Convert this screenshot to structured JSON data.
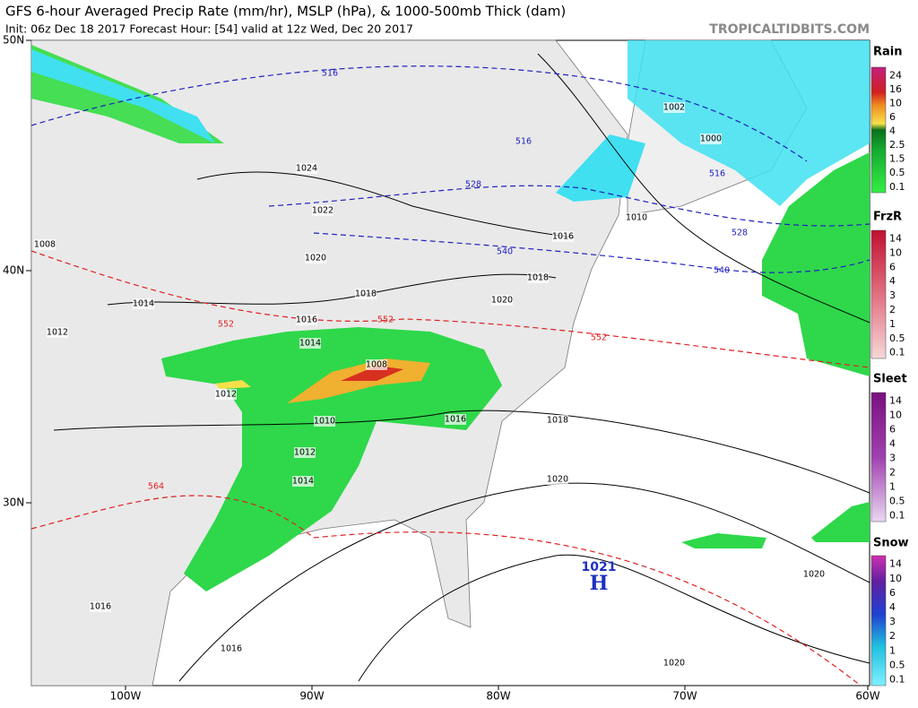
{
  "header": {
    "title": "GFS 6-hour Averaged Precip Rate (mm/hr), MSLP (hPa), & 1000-500mb Thick (dam)",
    "subtitle": "Init: 06z Dec 18 2017   Forecast Hour: [54]   valid at 12z Wed, Dec 20 2017",
    "source": "TROPICALTIDBITS.COM"
  },
  "map": {
    "lat_labels": [
      "50N",
      "40N",
      "30N"
    ],
    "lon_labels": [
      "100W",
      "90W",
      "80W",
      "70W",
      "60W"
    ],
    "isobar_labels": [
      "1024",
      "1022",
      "1020",
      "1018",
      "1016",
      "1014",
      "1014",
      "1012",
      "1012",
      "1008",
      "1008",
      "1010",
      "1012",
      "1014",
      "1016",
      "1018",
      "1020",
      "1016",
      "1010",
      "1002",
      "1000",
      "1018",
      "1020",
      "1020",
      "1020",
      "1016",
      "1016"
    ],
    "thickness_labels": [
      "516",
      "516",
      "516",
      "528",
      "528",
      "540",
      "540",
      "552",
      "552",
      "552",
      "564"
    ],
    "high": {
      "letter": "H",
      "pressure": "1021"
    }
  },
  "legend": [
    {
      "title": "Rain",
      "ticks": [
        "24",
        "16",
        "10",
        "6",
        "4",
        "2.5",
        "1.5",
        "0.5",
        "0.1"
      ]
    },
    {
      "title": "FrzR",
      "ticks": [
        "14",
        "10",
        "6",
        "4",
        "3",
        "2",
        "1",
        "0.5",
        "0.1"
      ]
    },
    {
      "title": "Sleet",
      "ticks": [
        "14",
        "10",
        "6",
        "4",
        "3",
        "2",
        "1",
        "0.5",
        "0.1"
      ]
    },
    {
      "title": "Snow",
      "ticks": [
        "14",
        "10",
        "6",
        "4",
        "3",
        "2",
        "1",
        "0.5",
        "0.1"
      ]
    }
  ]
}
